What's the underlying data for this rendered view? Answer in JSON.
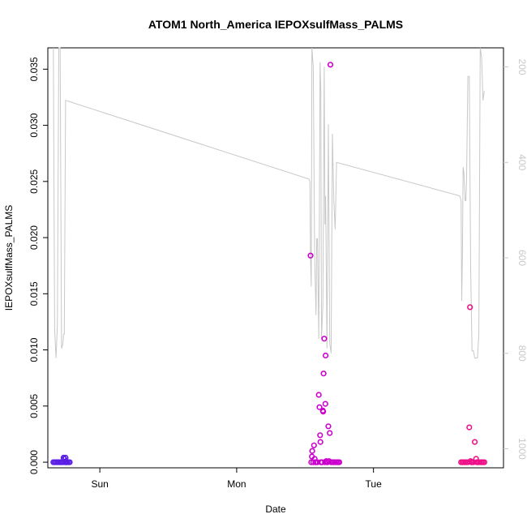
{
  "chart_data": {
    "type": "scatter",
    "title": "ATOM1 North_America IEPOXsulfMass_PALMS",
    "xlabel": "Date",
    "ylabel": "IEPOXsulfMass_PALMS",
    "x_ticks": [
      "Sun",
      "Mon",
      "Tue"
    ],
    "y_ticks": [
      "0.000",
      "0.005",
      "0.010",
      "0.015",
      "0.020",
      "0.025",
      "0.030",
      "0.035"
    ],
    "ylim": [
      -0.0005,
      0.0369
    ],
    "y2_ticks": [
      "200",
      "400",
      "600",
      "800",
      "1000"
    ],
    "y2lim": [
      1040,
      160
    ],
    "y2_reversed": true,
    "x_unit": "days since Sunday 00:00",
    "xlim": [
      -0.38,
      2.95
    ],
    "grid": false,
    "legend": "none",
    "colors": {
      "points_early": "#5a1ee6",
      "points_mid": "#cc00cc",
      "points_late": "#ee1188",
      "line": "#c8c8c8"
    },
    "points": [
      {
        "x": -0.34,
        "y": 0.0
      },
      {
        "x": -0.33,
        "y": 0.0
      },
      {
        "x": -0.32,
        "y": 0.0
      },
      {
        "x": -0.31,
        "y": 0.0
      },
      {
        "x": -0.3,
        "y": 0.0
      },
      {
        "x": -0.29,
        "y": 0.0
      },
      {
        "x": -0.28,
        "y": 0.0
      },
      {
        "x": -0.27,
        "y": 0.0
      },
      {
        "x": -0.265,
        "y": 0.0004
      },
      {
        "x": -0.26,
        "y": 0.0003
      },
      {
        "x": -0.255,
        "y": 0.0
      },
      {
        "x": -0.25,
        "y": 0.0004
      },
      {
        "x": -0.245,
        "y": 0.0
      },
      {
        "x": -0.24,
        "y": 0.0
      },
      {
        "x": -0.23,
        "y": 0.0
      },
      {
        "x": -0.22,
        "y": 0.0
      },
      {
        "x": 1.54,
        "y": 0.0184
      },
      {
        "x": 1.545,
        "y": 0.0
      },
      {
        "x": 1.55,
        "y": 0.0005
      },
      {
        "x": 1.552,
        "y": 0.001
      },
      {
        "x": 1.56,
        "y": 0.0
      },
      {
        "x": 1.565,
        "y": 0.0015
      },
      {
        "x": 1.57,
        "y": 0.0003
      },
      {
        "x": 1.575,
        "y": 0.0
      },
      {
        "x": 1.58,
        "y": 0.0
      },
      {
        "x": 1.59,
        "y": 0.0
      },
      {
        "x": 1.6,
        "y": 0.006
      },
      {
        "x": 1.605,
        "y": 0.0049
      },
      {
        "x": 1.61,
        "y": 0.0024
      },
      {
        "x": 1.612,
        "y": 0.0018
      },
      {
        "x": 1.615,
        "y": 0.0
      },
      {
        "x": 1.62,
        "y": 0.0
      },
      {
        "x": 1.625,
        "y": 0.0
      },
      {
        "x": 1.63,
        "y": 0.0046
      },
      {
        "x": 1.635,
        "y": 0.0079
      },
      {
        "x": 1.64,
        "y": 0.011
      },
      {
        "x": 1.645,
        "y": 0.0
      },
      {
        "x": 1.648,
        "y": 0.0052
      },
      {
        "x": 1.65,
        "y": 0.0095
      },
      {
        "x": 1.655,
        "y": 0.0001
      },
      {
        "x": 1.66,
        "y": 0.0
      },
      {
        "x": 1.665,
        "y": 0.0
      },
      {
        "x": 1.67,
        "y": 0.0032
      },
      {
        "x": 1.675,
        "y": 0.0001
      },
      {
        "x": 1.68,
        "y": 0.0026
      },
      {
        "x": 1.685,
        "y": 0.0354
      },
      {
        "x": 1.69,
        "y": 0.0
      },
      {
        "x": 1.7,
        "y": 0.0
      },
      {
        "x": 1.71,
        "y": 0.0
      },
      {
        "x": 1.72,
        "y": 0.0
      },
      {
        "x": 1.73,
        "y": 0.0
      },
      {
        "x": 1.74,
        "y": 0.0
      },
      {
        "x": 1.75,
        "y": 0.0
      },
      {
        "x": 1.632,
        "y": 0.0045
      },
      {
        "x": 2.64,
        "y": 0.0
      },
      {
        "x": 2.65,
        "y": 0.0
      },
      {
        "x": 2.66,
        "y": 0.0
      },
      {
        "x": 2.67,
        "y": 0.0
      },
      {
        "x": 2.68,
        "y": 0.0
      },
      {
        "x": 2.69,
        "y": 0.0
      },
      {
        "x": 2.7,
        "y": 0.0031
      },
      {
        "x": 2.705,
        "y": 0.0138
      },
      {
        "x": 2.71,
        "y": 0.0001
      },
      {
        "x": 2.715,
        "y": 0.0
      },
      {
        "x": 2.72,
        "y": 0.0
      },
      {
        "x": 2.73,
        "y": 0.0
      },
      {
        "x": 2.74,
        "y": 0.0018
      },
      {
        "x": 2.75,
        "y": 0.0003
      },
      {
        "x": 2.755,
        "y": 0.0
      },
      {
        "x": 2.76,
        "y": 0.0
      },
      {
        "x": 2.77,
        "y": 0.0
      },
      {
        "x": 2.78,
        "y": 0.0
      },
      {
        "x": 2.79,
        "y": 0.0
      },
      {
        "x": 2.8,
        "y": 0.0
      },
      {
        "x": 2.81,
        "y": 0.0
      }
    ],
    "line_y2": [
      {
        "x": -0.34,
        "y2": 160
      },
      {
        "x": -0.33,
        "y2": 750
      },
      {
        "x": -0.32,
        "y2": 810
      },
      {
        "x": -0.31,
        "y2": 740
      },
      {
        "x": -0.3,
        "y2": 160
      },
      {
        "x": -0.29,
        "y2": 160
      },
      {
        "x": -0.28,
        "y2": 790
      },
      {
        "x": -0.27,
        "y2": 780
      },
      {
        "x": -0.265,
        "y2": 760
      },
      {
        "x": -0.26,
        "y2": 760
      },
      {
        "x": -0.25,
        "y2": 270
      },
      {
        "x": 1.53,
        "y2": 435
      },
      {
        "x": 1.535,
        "y2": 440
      },
      {
        "x": 1.54,
        "y2": 600
      },
      {
        "x": 1.545,
        "y2": 660
      },
      {
        "x": 1.55,
        "y2": 160
      },
      {
        "x": 1.56,
        "y2": 200
      },
      {
        "x": 1.57,
        "y2": 600
      },
      {
        "x": 1.58,
        "y2": 720
      },
      {
        "x": 1.585,
        "y2": 560
      },
      {
        "x": 1.59,
        "y2": 560
      },
      {
        "x": 1.6,
        "y2": 770
      },
      {
        "x": 1.61,
        "y2": 190
      },
      {
        "x": 1.615,
        "y2": 250
      },
      {
        "x": 1.62,
        "y2": 770
      },
      {
        "x": 1.63,
        "y2": 700
      },
      {
        "x": 1.64,
        "y2": 200
      },
      {
        "x": 1.645,
        "y2": 530
      },
      {
        "x": 1.65,
        "y2": 470
      },
      {
        "x": 1.66,
        "y2": 790
      },
      {
        "x": 1.67,
        "y2": 320
      },
      {
        "x": 1.68,
        "y2": 780
      },
      {
        "x": 1.69,
        "y2": 800
      },
      {
        "x": 1.7,
        "y2": 340
      },
      {
        "x": 1.71,
        "y2": 480
      },
      {
        "x": 1.72,
        "y2": 540
      },
      {
        "x": 1.73,
        "y2": 400
      },
      {
        "x": 2.63,
        "y2": 470
      },
      {
        "x": 2.64,
        "y2": 480
      },
      {
        "x": 2.645,
        "y2": 690
      },
      {
        "x": 2.65,
        "y2": 590
      },
      {
        "x": 2.655,
        "y2": 410
      },
      {
        "x": 2.66,
        "y2": 420
      },
      {
        "x": 2.67,
        "y2": 480
      },
      {
        "x": 2.675,
        "y2": 480
      },
      {
        "x": 2.68,
        "y2": 440
      },
      {
        "x": 2.69,
        "y2": 220
      },
      {
        "x": 2.7,
        "y2": 220
      },
      {
        "x": 2.71,
        "y2": 620
      },
      {
        "x": 2.72,
        "y2": 795
      },
      {
        "x": 2.73,
        "y2": 795
      },
      {
        "x": 2.74,
        "y2": 810
      },
      {
        "x": 2.75,
        "y2": 810
      },
      {
        "x": 2.76,
        "y2": 810
      },
      {
        "x": 2.77,
        "y2": 760
      },
      {
        "x": 2.78,
        "y2": 160
      },
      {
        "x": 2.79,
        "y2": 180
      },
      {
        "x": 2.8,
        "y2": 270
      },
      {
        "x": 2.81,
        "y2": 250
      }
    ]
  }
}
